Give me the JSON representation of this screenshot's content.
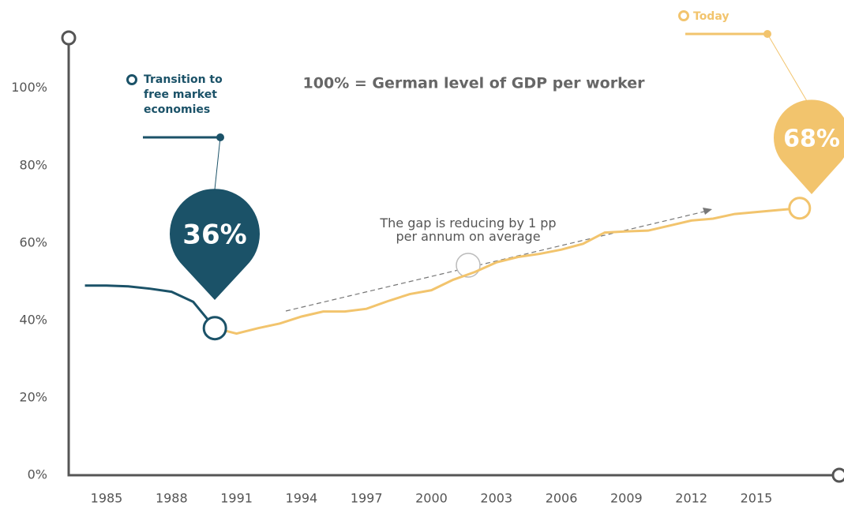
{
  "chart_data": {
    "type": "line",
    "title": "100% = German level of GDP per worker",
    "annotation": "The gap is reducing by 1 pp per annum on average",
    "callouts": [
      "36%",
      "68%"
    ],
    "xlim": [
      1983.25,
      2018.83
    ],
    "xticks": [
      1985,
      1988,
      1991,
      1994,
      1997,
      2000,
      2003,
      2006,
      2009,
      2012,
      2015
    ],
    "ylim": [
      0,
      113
    ],
    "yticks": [
      {
        "value": 0,
        "label": "0%"
      },
      {
        "value": 20,
        "label": "20%"
      },
      {
        "value": 40,
        "label": "40%"
      },
      {
        "value": 60,
        "label": "60%"
      },
      {
        "value": 80,
        "label": "80%"
      },
      {
        "value": 100,
        "label": "100%"
      }
    ],
    "series": [
      {
        "name": "Transition to free market economies",
        "color": "#1b5268",
        "x": [
          1984,
          1985,
          1986,
          1987,
          1988,
          1989,
          1990
        ],
        "values": [
          49,
          49,
          48.8,
          48.2,
          47.4,
          44.8,
          38
        ]
      },
      {
        "name": "Today",
        "color": "#f2c46d",
        "x": [
          1990,
          1991,
          1992,
          1993,
          1994,
          1995,
          1996,
          1997,
          1998,
          1999,
          2000,
          2001,
          2002,
          2003,
          2004,
          2005,
          2006,
          2007,
          2008,
          2009,
          2010,
          2011,
          2012,
          2013,
          2014,
          2015,
          2016,
          2017
        ],
        "values": [
          38,
          36.6,
          38,
          39.2,
          41,
          42.3,
          42.3,
          43,
          45,
          46.8,
          47.8,
          50.5,
          52.5,
          55,
          56.4,
          57.2,
          58.3,
          59.8,
          62.7,
          63,
          63.2,
          64.5,
          65.8,
          66.3,
          67.5,
          68,
          68.5,
          69
        ]
      }
    ]
  }
}
